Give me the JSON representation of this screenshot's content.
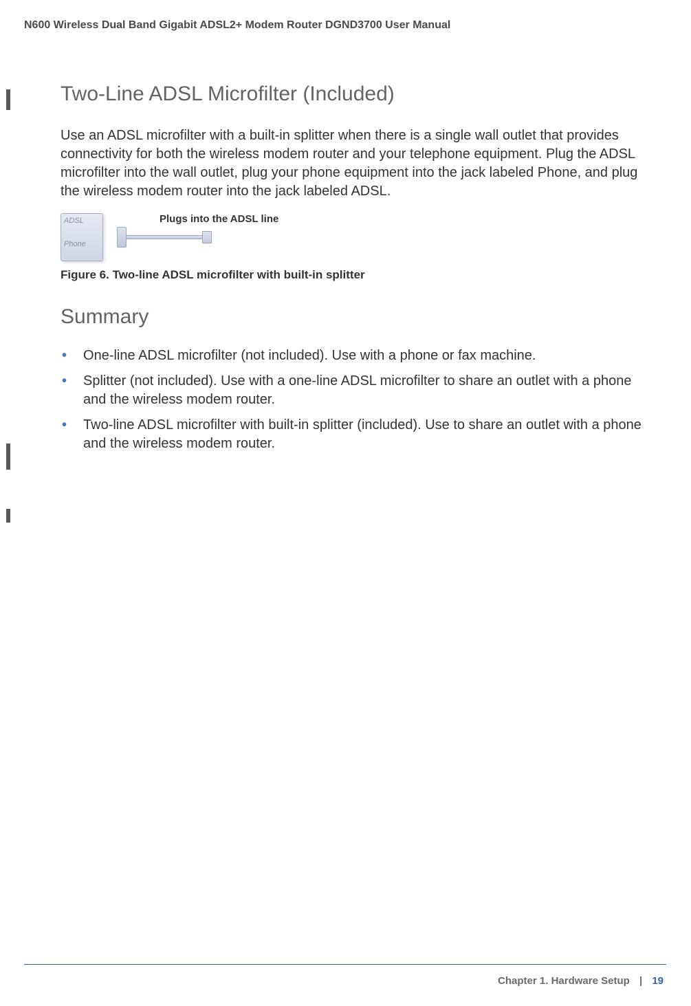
{
  "header": {
    "title": "N600 Wireless Dual Band Gigabit ADSL2+ Modem Router DGND3700 User Manual"
  },
  "section1": {
    "heading": "Two-Line ADSL Microfilter (Included)",
    "paragraph": "Use an ADSL microfilter with a built-in splitter when there is a single wall outlet that provides connectivity for both the wireless modem router and your telephone equipment. Plug the ADSL microfilter into the wall outlet, plug your phone equipment into the jack labeled Phone, and plug the wireless modem router into the jack labeled ADSL."
  },
  "figure": {
    "device_label_top": "ADSL",
    "device_label_mid": "Phone",
    "annotation": "Plugs into the ADSL line",
    "caption": "Figure 6. Two-line ADSL microfilter with built-in splitter"
  },
  "section2": {
    "heading": "Summary",
    "bullets": [
      "One-line ADSL microfilter (not included). Use with a phone or fax machine.",
      "Splitter (not included). Use with a one-line ADSL microfilter to share an outlet with a phone and the wireless modem router.",
      "Two-line ADSL microfilter with built-in splitter (included). Use to share an outlet with a phone and the wireless modem router."
    ]
  },
  "footer": {
    "chapter": "Chapter 1.  Hardware Setup",
    "page": "19"
  },
  "colors": {
    "heading_gray": "#636363",
    "body_text": "#333333",
    "bullet_blue": "#4a7ab5",
    "footer_blue": "#3a5fa8",
    "footer_gray": "#6a6a6a",
    "changebar": "#5a5a5a"
  }
}
